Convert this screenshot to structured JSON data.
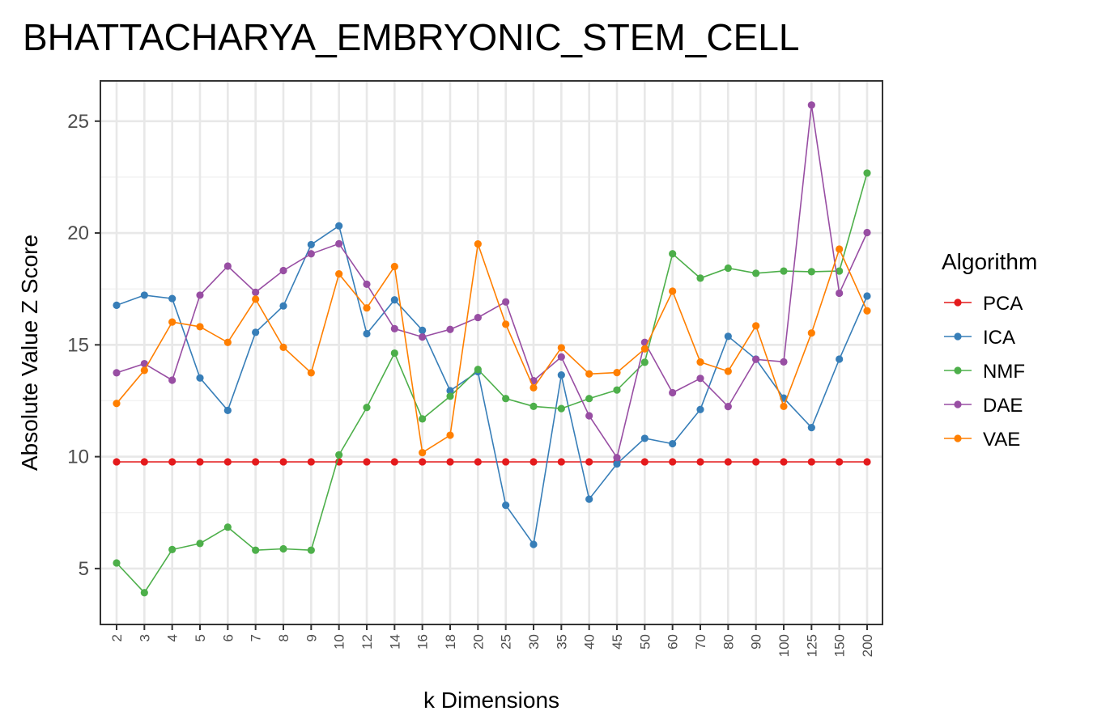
{
  "chart_data": {
    "type": "line",
    "title": "BHATTACHARYA_EMBRYONIC_STEM_CELL",
    "xlabel": "k Dimensions",
    "ylabel": "Absolute Value Z Score",
    "legend_title": "Algorithm",
    "legend_position": "right",
    "grid": true,
    "ylim": [
      2.5,
      26.8
    ],
    "yticks": [
      5,
      10,
      15,
      20,
      25
    ],
    "categories": [
      "2",
      "3",
      "4",
      "5",
      "6",
      "7",
      "8",
      "9",
      "10",
      "12",
      "14",
      "16",
      "18",
      "20",
      "25",
      "30",
      "35",
      "40",
      "45",
      "50",
      "60",
      "70",
      "80",
      "90",
      "100",
      "125",
      "150",
      "200"
    ],
    "series": [
      {
        "name": "PCA",
        "color": "#e41a1c",
        "values": [
          9.77,
          9.77,
          9.77,
          9.77,
          9.77,
          9.77,
          9.77,
          9.77,
          9.77,
          9.77,
          9.77,
          9.77,
          9.77,
          9.77,
          9.77,
          9.77,
          9.77,
          9.77,
          9.77,
          9.77,
          9.77,
          9.77,
          9.77,
          9.77,
          9.77,
          9.77,
          9.77,
          9.77
        ]
      },
      {
        "name": "ICA",
        "color": "#377eb8",
        "values": [
          16.77,
          17.22,
          17.07,
          13.52,
          12.07,
          15.56,
          16.74,
          19.48,
          20.32,
          15.5,
          17.01,
          15.65,
          12.95,
          13.8,
          7.83,
          6.08,
          13.65,
          8.1,
          9.68,
          10.82,
          10.58,
          12.11,
          15.38,
          14.36,
          12.62,
          11.3,
          14.36,
          17.18
        ]
      },
      {
        "name": "NMF",
        "color": "#4daf4a",
        "values": [
          5.25,
          3.92,
          5.85,
          6.12,
          6.85,
          5.82,
          5.88,
          5.82,
          10.08,
          12.2,
          14.63,
          11.69,
          12.7,
          13.9,
          12.6,
          12.25,
          12.15,
          12.6,
          12.98,
          14.22,
          19.07,
          17.98,
          18.43,
          18.2,
          18.3,
          18.27,
          18.3,
          22.68
        ]
      },
      {
        "name": "DAE",
        "color": "#984ea3",
        "values": [
          13.75,
          14.16,
          13.42,
          17.22,
          18.52,
          17.35,
          18.32,
          19.07,
          19.52,
          17.71,
          15.72,
          15.35,
          15.69,
          16.22,
          16.92,
          13.4,
          14.46,
          11.83,
          9.96,
          15.11,
          12.86,
          13.5,
          12.24,
          14.35,
          14.24,
          25.72,
          17.31,
          20.02
        ]
      },
      {
        "name": "VAE",
        "color": "#ff7f00",
        "values": [
          12.38,
          13.86,
          16.02,
          15.81,
          15.11,
          17.04,
          14.89,
          13.75,
          18.17,
          16.65,
          18.5,
          10.18,
          10.96,
          19.51,
          15.92,
          13.08,
          14.87,
          13.7,
          13.76,
          14.82,
          17.4,
          14.23,
          13.82,
          15.85,
          12.25,
          15.53,
          19.28,
          16.52
        ]
      }
    ]
  }
}
